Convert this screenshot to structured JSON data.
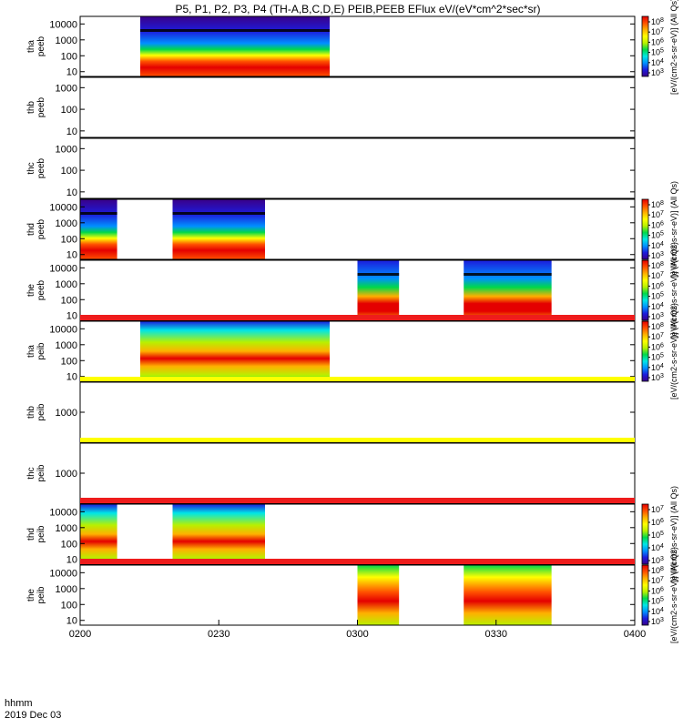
{
  "title": "P5, P1, P2, P3, P4 (TH-A,B,C,D,E) PEIB,PEEB EFlux eV/(eV*cm^2*sec*sr)",
  "time_axis": {
    "label_top": "hhmm",
    "label_bottom": "2019 Dec 03",
    "ticks": [
      "0200",
      "0230",
      "0300",
      "0330",
      "0400"
    ]
  },
  "chart_data": {
    "type": "heatmap",
    "x_range_min": [
      0,
      120
    ],
    "x_unit": "minutes after 0200 UT",
    "y_scale": "log",
    "panels": [
      {
        "id": "tha-peeb",
        "ylabel": [
          "tha",
          "peeb"
        ],
        "yticks": [
          "10000",
          "1000",
          "100",
          "10"
        ],
        "ylim_eV": [
          5,
          30000
        ],
        "segments_min": [
          [
            13,
            54
          ]
        ],
        "flux_pattern": "electron",
        "colorbar": {
          "ticks": [
            "10^8",
            "10^7",
            "10^6",
            "10^5",
            "10^4",
            "10^3"
          ],
          "label": "[eV/(cm2-s-sr-eV)] (All Qs)"
        }
      },
      {
        "id": "thb-peeb",
        "ylabel": [
          "thb",
          "peeb"
        ],
        "yticks": [
          "1000",
          "100",
          "10"
        ],
        "ylim_eV": [
          5,
          3000
        ],
        "segments_min": [],
        "flux_pattern": "none"
      },
      {
        "id": "thc-peeb",
        "ylabel": [
          "thc",
          "peeb"
        ],
        "yticks": [
          "1000",
          "100",
          "10"
        ],
        "ylim_eV": [
          5,
          3000
        ],
        "segments_min": [],
        "flux_pattern": "none"
      },
      {
        "id": "thd-peeb",
        "ylabel": [
          "thd",
          "peeb"
        ],
        "yticks": [
          "10000",
          "1000",
          "100",
          "10"
        ],
        "ylim_eV": [
          5,
          30000
        ],
        "segments_min": [
          [
            0,
            8
          ],
          [
            20,
            40
          ]
        ],
        "flux_pattern": "electron",
        "colorbar": {
          "ticks": [
            "10^8",
            "10^7",
            "10^6",
            "10^5",
            "10^4",
            "10^3"
          ],
          "label": "[eV/(cm2-s-sr-eV)] (All Qs)"
        }
      },
      {
        "id": "the-peeb",
        "ylabel": [
          "the",
          "peeb"
        ],
        "yticks": [
          "10000",
          "1000",
          "100",
          "10"
        ],
        "ylim_eV": [
          5,
          30000
        ],
        "segments_min": [
          [
            60,
            69
          ],
          [
            83,
            102
          ]
        ],
        "flux_pattern": "electron-dense",
        "colorbar": {
          "ticks": [
            "10^8",
            "10^7",
            "10^6",
            "10^5",
            "10^4",
            "10^3"
          ],
          "label": "[eV/(cm2-s-sr-eV)] (All Qs)"
        }
      },
      {
        "id": "tha-peib",
        "ylabel": [
          "tha",
          "peib"
        ],
        "yticks": [
          "10000",
          "1000",
          "100",
          "10"
        ],
        "ylim_eV": [
          5,
          30000
        ],
        "segments_min": [
          [
            13,
            54
          ]
        ],
        "flux_pattern": "ion",
        "colorbar": {
          "ticks": [
            "10^8",
            "10^7",
            "10^6",
            "10^5",
            "10^4",
            "10^3"
          ],
          "label": "[eV/(cm2-s-sr-eV)] (All Qs)"
        }
      },
      {
        "id": "thb-peib",
        "ylabel": [
          "thb",
          "peib"
        ],
        "yticks": [
          "1000"
        ],
        "ylim_eV": [
          100,
          10000
        ],
        "segments_min": [],
        "flux_pattern": "none"
      },
      {
        "id": "thc-peib",
        "ylabel": [
          "thc",
          "peib"
        ],
        "yticks": [
          "1000"
        ],
        "ylim_eV": [
          100,
          10000
        ],
        "segments_min": [],
        "flux_pattern": "none"
      },
      {
        "id": "thd-peib",
        "ylabel": [
          "thd",
          "peib"
        ],
        "yticks": [
          "10000",
          "1000",
          "100",
          "10"
        ],
        "ylim_eV": [
          5,
          30000
        ],
        "segments_min": [
          [
            0,
            8
          ],
          [
            20,
            40
          ]
        ],
        "flux_pattern": "ion",
        "colorbar": {
          "ticks": [
            "10^7",
            "10^6",
            "10^5",
            "10^4",
            "10^3"
          ],
          "label": "[eV/(cm2-s-sr-eV)] (All Qs)"
        }
      },
      {
        "id": "the-peib",
        "ylabel": [
          "the",
          "peib"
        ],
        "yticks": [
          "10000",
          "1000",
          "100",
          "10"
        ],
        "ylim_eV": [
          5,
          30000
        ],
        "segments_min": [
          [
            60,
            69
          ],
          [
            83,
            102
          ]
        ],
        "flux_pattern": "ion-hot",
        "colorbar": {
          "ticks": [
            "10^8",
            "10^7",
            "10^6",
            "10^5",
            "10^4",
            "10^3"
          ],
          "label": "[eV/(cm2-s-sr-eV)] (All Qs)"
        }
      }
    ]
  },
  "colors": {
    "scale": [
      "#3a0088",
      "#1c1cdc",
      "#0090ff",
      "#00e6e6",
      "#00d84a",
      "#b8f000",
      "#ffff00",
      "#ffb000",
      "#ff5000",
      "#e40000"
    ],
    "fill_band_red": "#ee1c1c",
    "fill_band_yellow": "#ffff00",
    "black": "#000000"
  }
}
